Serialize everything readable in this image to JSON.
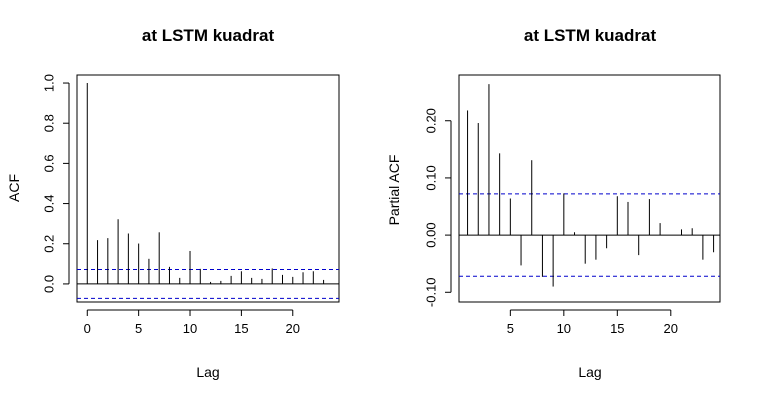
{
  "chart_data": [
    {
      "type": "bar",
      "subtype": "acf",
      "title": "at LSTM kuadrat",
      "xlabel": "Lag",
      "ylabel": "ACF",
      "xlim": [
        -1,
        24.5
      ],
      "ylim": [
        -0.09,
        1.04
      ],
      "xticks": [
        0,
        5,
        10,
        15,
        20
      ],
      "yticks": [
        0.0,
        0.2,
        0.4,
        0.6,
        0.8,
        1.0
      ],
      "ytick_labels": [
        "0.0",
        "0.2",
        "0.4",
        "0.6",
        "0.8",
        "1.0"
      ],
      "confidence_bound": 0.072,
      "confidence_color": "#0000cc",
      "grid": false,
      "x": [
        0,
        1,
        2,
        3,
        4,
        5,
        6,
        7,
        8,
        9,
        10,
        11,
        12,
        13,
        14,
        15,
        16,
        17,
        18,
        19,
        20,
        21,
        22,
        23
      ],
      "values": [
        1.0,
        0.218,
        0.228,
        0.322,
        0.251,
        0.201,
        0.125,
        0.257,
        0.085,
        0.03,
        0.164,
        0.075,
        0.01,
        0.015,
        0.04,
        0.063,
        0.03,
        0.025,
        0.077,
        0.045,
        0.035,
        0.058,
        0.063,
        0.02
      ]
    },
    {
      "type": "bar",
      "subtype": "pacf",
      "title": "at LSTM kuadrat",
      "xlabel": "Lag",
      "ylabel": "Partial ACF",
      "xlim": [
        0.2,
        24.6
      ],
      "ylim": [
        -0.117,
        0.28
      ],
      "xticks": [
        5,
        10,
        15,
        20
      ],
      "yticks": [
        -0.1,
        0.0,
        0.1,
        0.2
      ],
      "ytick_labels": [
        "-0.10",
        "0.00",
        "0.10",
        "0.20"
      ],
      "confidence_bound": 0.072,
      "confidence_color": "#0000cc",
      "grid": false,
      "x": [
        1,
        2,
        3,
        4,
        5,
        6,
        7,
        8,
        9,
        10,
        11,
        12,
        13,
        14,
        15,
        16,
        17,
        18,
        19,
        20,
        21,
        22,
        23,
        24
      ],
      "values": [
        0.218,
        0.196,
        0.264,
        0.143,
        0.064,
        -0.053,
        0.131,
        -0.073,
        -0.09,
        0.073,
        0.005,
        -0.05,
        -0.043,
        -0.023,
        0.068,
        0.058,
        -0.035,
        0.063,
        0.021,
        0.0,
        0.01,
        0.012,
        -0.043,
        -0.03
      ]
    }
  ]
}
